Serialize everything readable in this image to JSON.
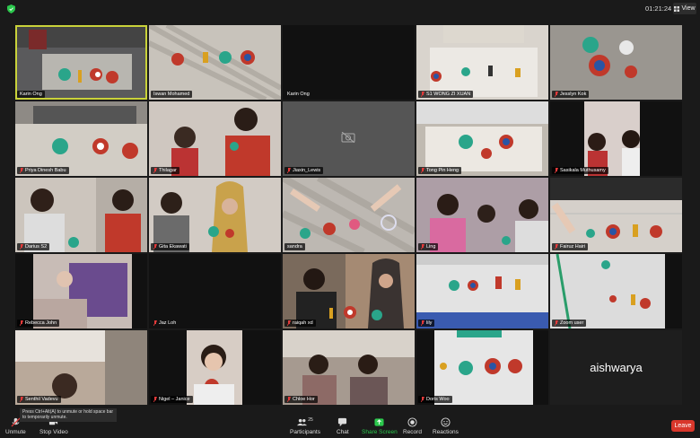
{
  "window": {
    "clock": "01:21:24",
    "view_label": "View"
  },
  "participants": [
    {
      "name": "Karin Ong",
      "active": true,
      "muted": false
    },
    {
      "name": "Iswan Mohamed",
      "muted": false
    },
    {
      "name": "Karin Ong",
      "muted": false
    },
    {
      "name": "S1 WONG ZI XUAN",
      "muted": true
    },
    {
      "name": "Jesslyn Kok",
      "muted": true
    },
    {
      "name": "Priya Dinesh Babu",
      "muted": true
    },
    {
      "name": "Thilagar",
      "muted": true
    },
    {
      "name": "Jiaxin_Lewis",
      "muted": true
    },
    {
      "name": "Tong Pin Heng",
      "muted": true
    },
    {
      "name": "Sasikala Muthusamy",
      "muted": true
    },
    {
      "name": "Darius S2",
      "muted": true
    },
    {
      "name": "Gita Ekawati",
      "muted": true
    },
    {
      "name": "sandra",
      "muted": false
    },
    {
      "name": "Ling",
      "muted": true
    },
    {
      "name": "Fairuz Hairi",
      "muted": true
    },
    {
      "name": "Rebecca John",
      "muted": true
    },
    {
      "name": "Jaz Loh",
      "muted": true
    },
    {
      "name": "raiqah xd",
      "muted": true
    },
    {
      "name": "lily",
      "muted": true
    },
    {
      "name": "Zoom user",
      "muted": true
    },
    {
      "name": "Senthil Vadevu",
      "muted": true
    },
    {
      "name": "Nigel – Janice",
      "muted": true
    },
    {
      "name": "Chloe Hor",
      "muted": true
    },
    {
      "name": "Doris Woo",
      "muted": true
    },
    {
      "name": "aishwarya",
      "muted": false,
      "big_name": true
    }
  ],
  "toolbar": {
    "unmute": "Unmute",
    "stop_video": "Stop Video",
    "participants": "Participants",
    "participants_count": "25",
    "chat": "Chat",
    "share_screen": "Share Screen",
    "record": "Record",
    "reactions": "Reactions",
    "leave": "Leave"
  },
  "tooltip": "Press Ctrl+Alt(A) to unmute or hold space bar to temporarily unmute.",
  "colors": {
    "active_border": "#c9d23a",
    "share_green": "#2cc84d",
    "leave_red": "#d9372b"
  }
}
